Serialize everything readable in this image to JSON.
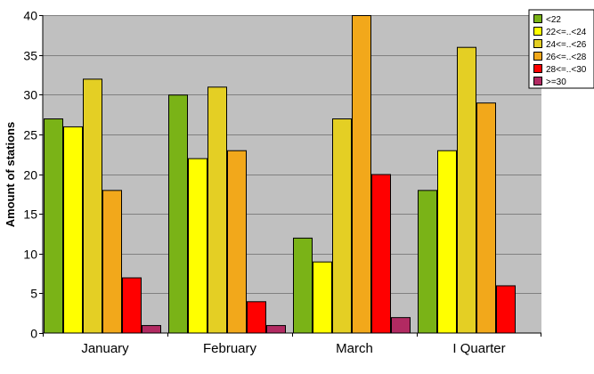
{
  "chart_data": {
    "type": "bar",
    "categories": [
      "January",
      "February",
      "March",
      "I Quarter"
    ],
    "ylabel": "Amount of stations",
    "xlabel": "",
    "ylim": [
      0,
      40
    ],
    "yticks": [
      0,
      5,
      10,
      15,
      20,
      25,
      30,
      35,
      40
    ],
    "grid": true,
    "legend_position": "top-right",
    "plot_background": "#c0c0c0",
    "series": [
      {
        "name": "<22",
        "color": "#7ab317",
        "values": [
          27,
          30,
          12,
          18
        ]
      },
      {
        "name": "22<=..<24",
        "color": "#ffff00",
        "values": [
          26,
          22,
          9,
          23
        ]
      },
      {
        "name": "24<=..<26",
        "color": "#e4cf24",
        "values": [
          32,
          31,
          27,
          36
        ]
      },
      {
        "name": "26<=..<28",
        "color": "#f2a81b",
        "values": [
          18,
          23,
          40,
          29
        ]
      },
      {
        "name": "28<=..<30",
        "color": "#ff0000",
        "values": [
          7,
          4,
          20,
          6
        ]
      },
      {
        "name": ">=30",
        "color": "#b22a62",
        "values": [
          1,
          1,
          2,
          0
        ]
      }
    ]
  }
}
